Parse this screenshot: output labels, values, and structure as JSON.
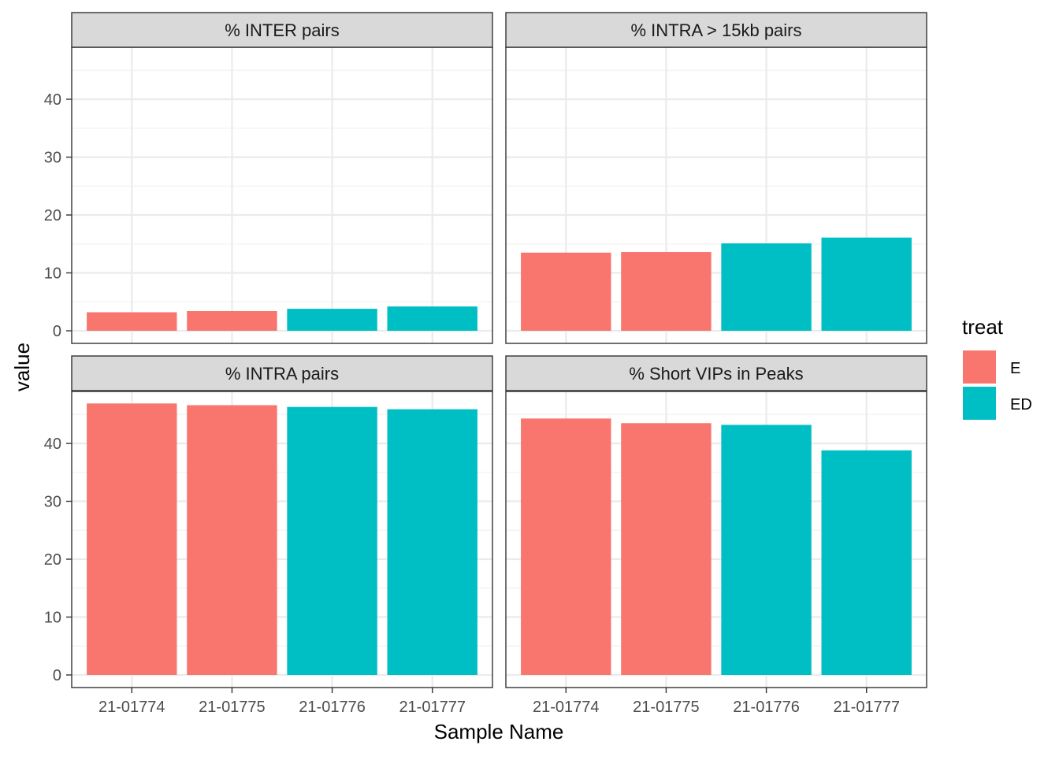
{
  "chart_data": {
    "type": "bar",
    "faceted": true,
    "xlabel": "Sample Name",
    "ylabel": "value",
    "ylim": [
      0,
      49
    ],
    "yticks": [
      0,
      10,
      20,
      30,
      40
    ],
    "grid": true,
    "legend": {
      "title": "treat",
      "placement": "right",
      "entries": [
        {
          "label": "E",
          "color": "#F8766D"
        },
        {
          "label": "ED",
          "color": "#00BFC4"
        }
      ]
    },
    "categories": [
      "21-01774",
      "21-01775",
      "21-01776",
      "21-01777"
    ],
    "category_treat": [
      "E",
      "E",
      "ED",
      "ED"
    ],
    "panels": [
      {
        "title": "% INTER pairs",
        "values": [
          3.2,
          3.4,
          3.8,
          4.2
        ]
      },
      {
        "title": "% INTRA > 15kb pairs",
        "values": [
          13.5,
          13.6,
          15.1,
          16.1
        ]
      },
      {
        "title": "% INTRA pairs",
        "values": [
          46.9,
          46.6,
          46.3,
          45.9
        ]
      },
      {
        "title": "% Short VIPs in Peaks",
        "values": [
          44.3,
          43.5,
          43.2,
          38.8
        ]
      }
    ]
  }
}
